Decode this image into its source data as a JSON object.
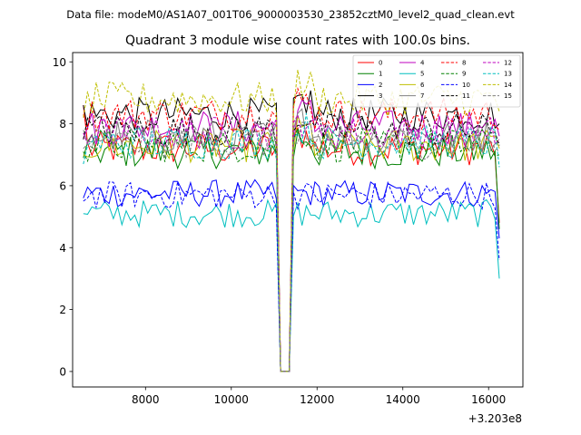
{
  "header": {
    "suptitle": "Data file: modeM0/AS1A07_001T06_9000003530_23852cztM0_level2_quad_clean.evt"
  },
  "chart_data": {
    "type": "line",
    "title": "Quadrant 3 module wise count rates with 100.0s bins.",
    "xlabel": "",
    "ylabel": "",
    "x_offset_label": "+3.203e8",
    "xlim": [
      6300,
      16800
    ],
    "ylim": [
      -0.5,
      10.3
    ],
    "x_ticks": [
      8000,
      10000,
      12000,
      14000,
      16000
    ],
    "y_ticks": [
      0,
      2,
      4,
      6,
      8,
      10
    ],
    "x_start": 6550,
    "x_step": 100,
    "gap": {
      "start": 11050,
      "end": 11450
    },
    "x_end": 16250,
    "legend_position": "top-right",
    "series": [
      {
        "name": "0",
        "color": "#ff0000",
        "dash": false,
        "level": 7.2,
        "first": 8.6,
        "last": 4.8
      },
      {
        "name": "1",
        "color": "#008000",
        "dash": false,
        "level": 7.1,
        "first": 6.9,
        "last": 4.6
      },
      {
        "name": "2",
        "color": "#0000ff",
        "dash": false,
        "level": 5.75,
        "first": 5.6,
        "last": 4.3
      },
      {
        "name": "3",
        "color": "#000000",
        "dash": false,
        "level": 8.3,
        "first": 8.6,
        "last": 8.0
      },
      {
        "name": "4",
        "color": "#bf00bf",
        "dash": false,
        "level": 7.9,
        "first": 7.5,
        "last": 7.6
      },
      {
        "name": "5",
        "color": "#00bfbf",
        "dash": false,
        "level": 5.1,
        "first": 5.1,
        "last": 3.0
      },
      {
        "name": "6",
        "color": "#bfbf00",
        "dash": false,
        "level": 7.3,
        "first": 7.0,
        "last": 7.2
      },
      {
        "name": "7",
        "color": "#808080",
        "dash": false,
        "level": 7.6,
        "first": 7.8,
        "last": 7.4
      },
      {
        "name": "8",
        "color": "#ff0000",
        "dash": true,
        "level": 8.3,
        "first": 8.3,
        "last": 7.8
      },
      {
        "name": "9",
        "color": "#008000",
        "dash": true,
        "level": 7.3,
        "first": 7.1,
        "last": 7.0
      },
      {
        "name": "10",
        "color": "#0000ff",
        "dash": true,
        "level": 5.7,
        "first": 5.5,
        "last": 3.6
      },
      {
        "name": "11",
        "color": "#000000",
        "dash": true,
        "level": 7.8,
        "first": 7.5,
        "last": 7.3
      },
      {
        "name": "12",
        "color": "#bf00bf",
        "dash": true,
        "level": 7.7,
        "first": 7.7,
        "last": 7.5
      },
      {
        "name": "13",
        "color": "#00bfbf",
        "dash": true,
        "level": 7.4,
        "first": 6.7,
        "last": 6.6
      },
      {
        "name": "14",
        "color": "#bfbf00",
        "dash": true,
        "level": 8.8,
        "first": 8.2,
        "last": 8.4
      },
      {
        "name": "15",
        "color": "#808080",
        "dash": true,
        "level": 7.4,
        "first": 7.2,
        "last": 7.1
      }
    ]
  }
}
